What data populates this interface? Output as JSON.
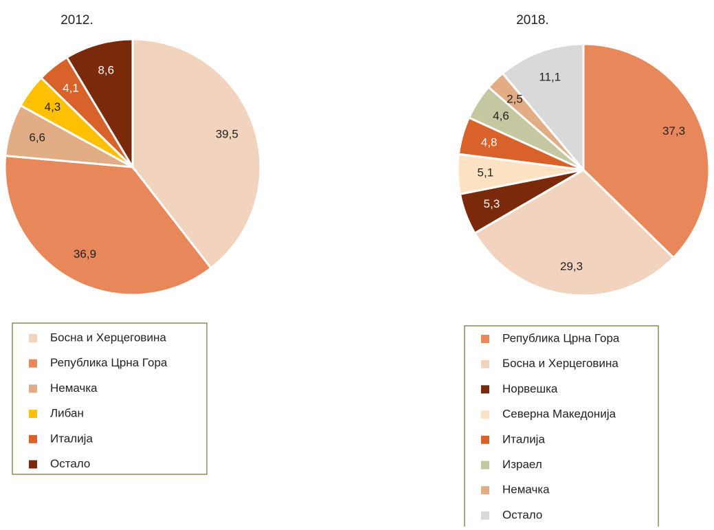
{
  "chart_data": [
    {
      "type": "pie",
      "title": "2012.",
      "categories": [
        "Босна и Херцеговина",
        "Република Црна Гора",
        "Немачка",
        "Либан",
        "Италија",
        "Остало"
      ],
      "values": [
        39.5,
        36.9,
        6.6,
        4.3,
        4.1,
        8.6
      ],
      "value_labels": [
        "39,5",
        "36,9",
        "6,6",
        "4,3",
        "4,1",
        "8,6"
      ],
      "colors": [
        "#F2D4BE",
        "#E8875A",
        "#E2AC84",
        "#FFC000",
        "#D9622B",
        "#7A2A0A"
      ]
    },
    {
      "type": "pie",
      "title": "2018.",
      "categories": [
        "Република Црна Гора",
        "Босна и Херцеговина",
        "Норвешка",
        "Северна Македонија",
        "Италија",
        "Израел",
        "Немачка",
        "Остало"
      ],
      "values": [
        37.3,
        29.3,
        5.3,
        5.1,
        4.8,
        4.6,
        2.5,
        11.1
      ],
      "value_labels": [
        "37,3",
        "29,3",
        "5,3",
        "5,1",
        "4,8",
        "4,6",
        "2,5",
        "11,1"
      ],
      "colors": [
        "#E8875A",
        "#F2D4BE",
        "#7A2A0A",
        "#FDE3C4",
        "#D9622B",
        "#C4C79F",
        "#E2AC84",
        "#D9D9D9"
      ]
    }
  ]
}
